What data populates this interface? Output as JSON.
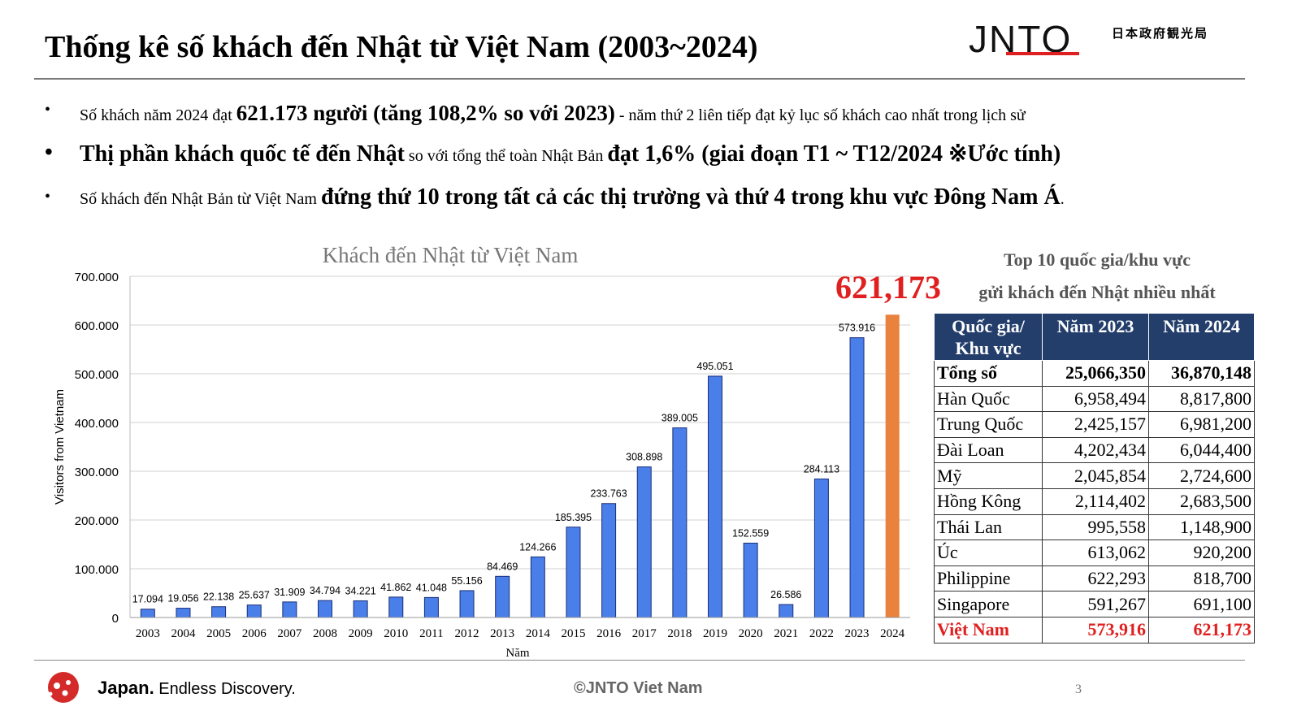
{
  "title": "Thống kê số khách đến Nhật từ Việt Nam (2003~2024)",
  "logo": {
    "jnto": "JNTO",
    "agency": "日本政府観光局"
  },
  "bullets": [
    {
      "dot": "•",
      "pre": "Số khách năm 2024 đạt ",
      "bold": "621.173 người (tăng 108,2% so với 2023)",
      "post": " - năm thứ 2 liên tiếp đạt kỷ lục số khách cao nhất trong lịch sử"
    },
    {
      "dot": "•",
      "bold": "Thị phần khách quốc tế đến Nhật",
      "mid": " so với tổng thể toàn Nhật Bản ",
      "bold2": "đạt 1,6% (giai đoạn T1 ~ T12/2024 ※Ước tính)"
    },
    {
      "dot": "•",
      "pre": "Số khách đến Nhật Bản từ Việt Nam ",
      "bold": "đứng thứ 10 trong tất cả các thị trường và thứ 4 trong khu vực Đông Nam Á",
      "post": "."
    }
  ],
  "chart_data": {
    "type": "bar",
    "title": "Khách đến Nhật từ Việt Nam",
    "xlabel": "Năm",
    "ylabel": "Visitors from Vietnam",
    "ylim": [
      0,
      700000
    ],
    "yticks": [
      "0",
      "100.000",
      "200.000",
      "300.000",
      "400.000",
      "500.000",
      "600.000",
      "700.000"
    ],
    "categories": [
      "2003",
      "2004",
      "2005",
      "2006",
      "2007",
      "2008",
      "2009",
      "2010",
      "2011",
      "2012",
      "2013",
      "2014",
      "2015",
      "2016",
      "2017",
      "2018",
      "2019",
      "2020",
      "2021",
      "2022",
      "2023",
      "2024"
    ],
    "values": [
      17094,
      19056,
      22138,
      25637,
      31909,
      34794,
      34221,
      41862,
      41048,
      55156,
      84469,
      124266,
      185395,
      233763,
      308898,
      389005,
      495051,
      152559,
      26586,
      284113,
      573916,
      621173
    ],
    "data_labels": [
      "17.094",
      "19.056",
      "22.138",
      "25.637",
      "31.909",
      "34.794",
      "34.221",
      "41.862",
      "41.048",
      "55.156",
      "84.469",
      "124.266",
      "185.395",
      "233.763",
      "308.898",
      "389.005",
      "495.051",
      "152.559",
      "26.586",
      "284.113",
      "573.916",
      ""
    ],
    "highlight_label": "621,173",
    "colors": {
      "bar": "#4a7ee8",
      "highlight": "#e8823c",
      "highlight_text": "#e02020"
    },
    "grid": true
  },
  "table": {
    "title_line1": "Top 10 quốc gia/khu vực",
    "title_line2": "gửi khách đến Nhật nhiều nhất",
    "header": [
      "Quốc gia/ Khu vực",
      "Năm 2023",
      "Năm 2024"
    ],
    "rows": [
      [
        "Tổng số",
        "25,066,350",
        "36,870,148"
      ],
      [
        "Hàn Quốc",
        "6,958,494",
        "8,817,800"
      ],
      [
        "Trung Quốc",
        "2,425,157",
        "6,981,200"
      ],
      [
        "Đài Loan",
        "4,202,434",
        "6,044,400"
      ],
      [
        "Mỹ",
        "2,045,854",
        "2,724,600"
      ],
      [
        "Hồng Kông",
        "2,114,402",
        "2,683,500"
      ],
      [
        "Thái Lan",
        "995,558",
        "1,148,900"
      ],
      [
        "Úc",
        "613,062",
        "920,200"
      ],
      [
        "Philippine",
        "622,293",
        "818,700"
      ],
      [
        "Singapore",
        "591,267",
        "691,100"
      ],
      [
        "Việt Nam",
        "573,916",
        "621,173"
      ]
    ]
  },
  "footer": {
    "brand_bold": "Japan.",
    "brand_rest": " Endless Discovery.",
    "copyright": "©JNTO Viet Nam",
    "page": "3"
  }
}
